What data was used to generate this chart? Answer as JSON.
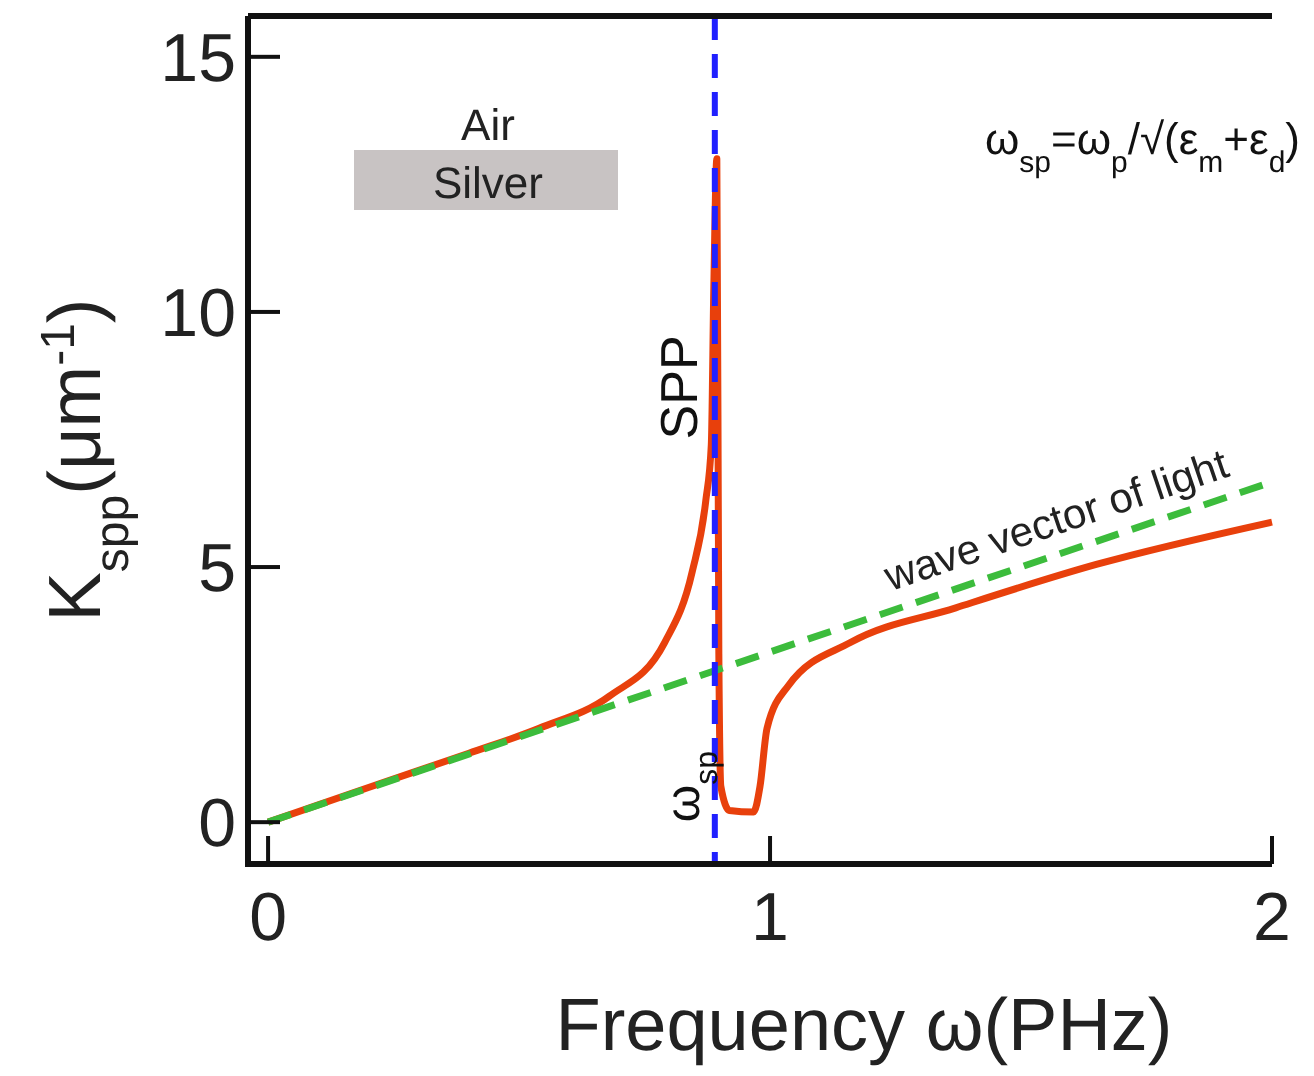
{
  "chart_data": {
    "type": "line",
    "xlabel": "Frequency ω(PHz)",
    "ylabel": "K$_{spp}$(μm$^{-1}$)",
    "xlim": [
      -0.04,
      2.0
    ],
    "xticks": [
      0,
      1,
      2
    ],
    "ylim": [
      -0.82,
      15.8
    ],
    "yticks": [
      0,
      5,
      10,
      15
    ],
    "grid": false,
    "series": [
      {
        "name": "SPP",
        "color": "#e8400c",
        "line_style": "solid",
        "x": [
          0,
          0.2,
          0.4,
          0.54,
          0.68,
          0.79,
          0.845,
          0.872,
          0.883,
          0.888,
          0.894,
          0.898,
          0.902,
          0.919,
          0.967,
          0.98,
          0.994,
          1.036,
          1.16,
          1.37,
          1.65,
          2.0
        ],
        "values": [
          0,
          0.68,
          1.35,
          1.84,
          2.47,
          3.52,
          4.91,
          6.3,
          7.4,
          10.5,
          13.0,
          3.3,
          0.7,
          0.23,
          0.2,
          0.7,
          1.84,
          2.67,
          3.52,
          4.2,
          5.05,
          5.88
        ]
      },
      {
        "name": "wave vector of light",
        "color": "#3cbc3c",
        "line_style": "dashed",
        "x": [
          0,
          2
        ],
        "values": [
          0,
          6.67
        ]
      }
    ],
    "ref_lines": [
      {
        "axis": "x",
        "value": 0.89,
        "label": "ω$_{sp}$",
        "color": "#2020ff",
        "line_style": "dashed"
      }
    ],
    "annotations": [
      "Air",
      "Silver",
      "ω$_{sp}$=ω$_{p}$/√(ε$_{m}$+ε$_{d}$)"
    ]
  }
}
